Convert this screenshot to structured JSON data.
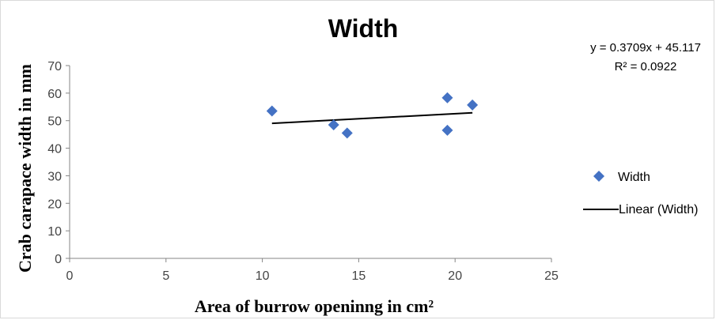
{
  "chart_data": {
    "type": "scatter",
    "title": "Width",
    "xlabel": "Area of burrow openinng in cm²",
    "ylabel": "Crab carapace width in mm",
    "xlim": [
      0,
      25
    ],
    "ylim": [
      0,
      70
    ],
    "x_ticks": [
      "0",
      "5",
      "10",
      "15",
      "20",
      "25"
    ],
    "y_ticks": [
      "0",
      "10",
      "20",
      "30",
      "40",
      "50",
      "60",
      "70"
    ],
    "grid": false,
    "legend_position": "right",
    "series": [
      {
        "name": "Width",
        "marker": "diamond",
        "color": "#4472c4",
        "points": [
          {
            "x": 10.5,
            "y": 53.5
          },
          {
            "x": 13.7,
            "y": 48.5
          },
          {
            "x": 14.4,
            "y": 45.5
          },
          {
            "x": 19.6,
            "y": 58.3
          },
          {
            "x": 19.6,
            "y": 46.5
          },
          {
            "x": 20.9,
            "y": 55.7
          }
        ]
      }
    ],
    "trendline": {
      "name": "Linear (Width)",
      "color": "#000000",
      "slope": 0.3709,
      "intercept": 45.117,
      "x_range": [
        10.5,
        20.9
      ],
      "equation": "y = 0.3709x + 45.117",
      "r_squared": "R² = 0.0922"
    }
  }
}
